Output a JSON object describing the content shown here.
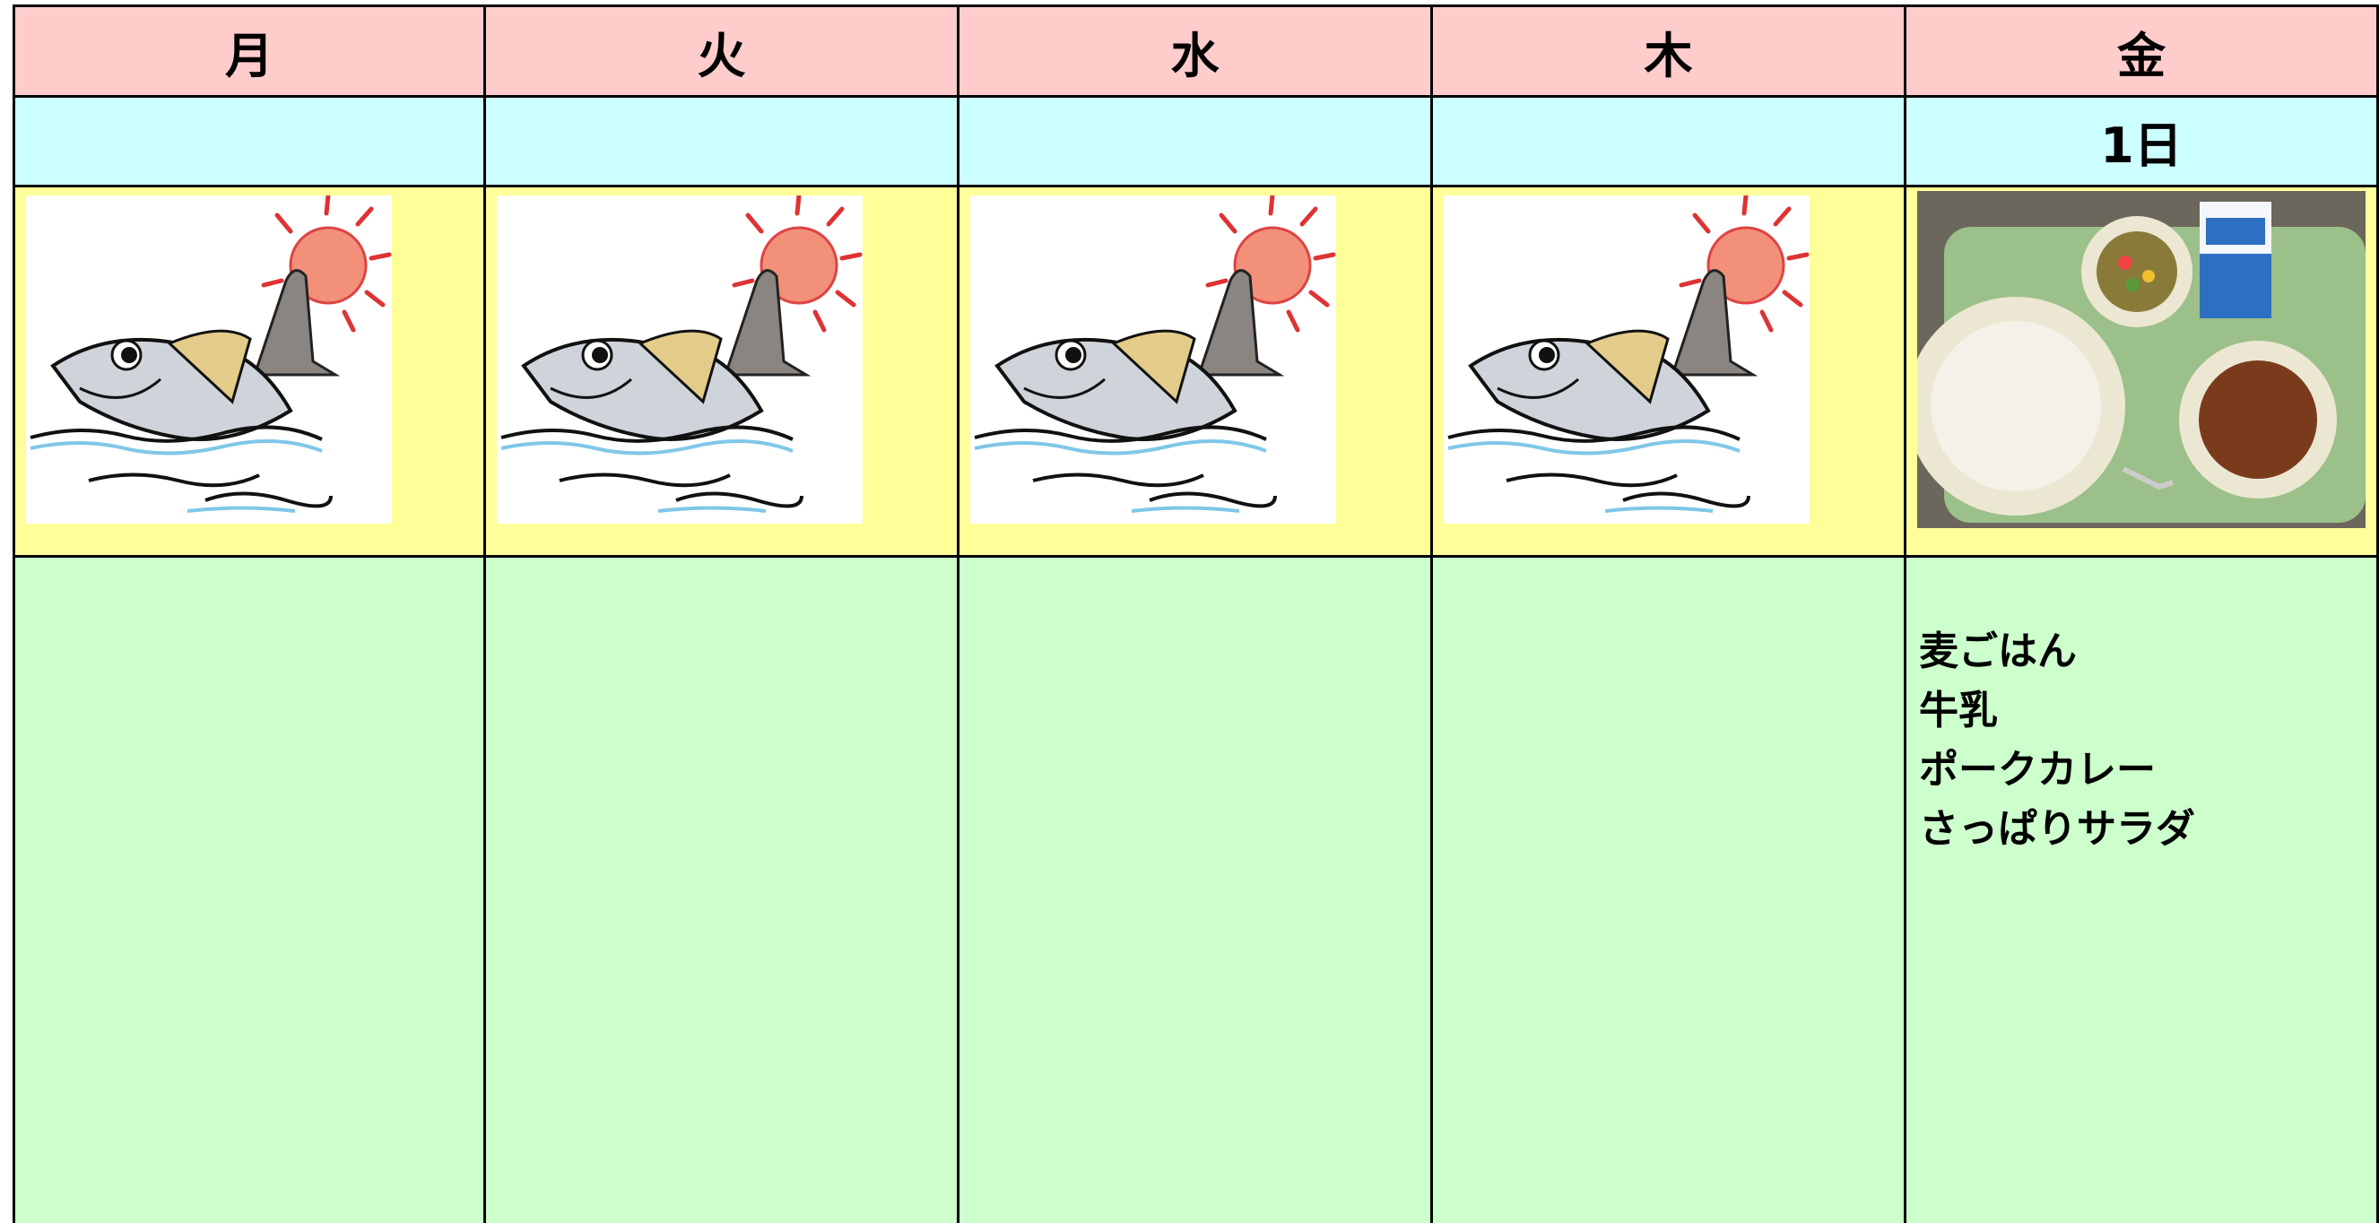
{
  "days": [
    {
      "weekday": "月"
    },
    {
      "weekday": "火"
    },
    {
      "weekday": "水"
    },
    {
      "weekday": "木"
    },
    {
      "weekday": "金",
      "date": "1日",
      "menu": [
        "麦ごはん",
        "牛乳",
        "ポークカレー",
        "さっぱりサラダ"
      ]
    }
  ]
}
